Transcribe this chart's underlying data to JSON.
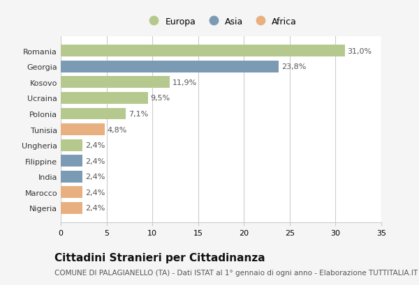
{
  "categories": [
    "Romania",
    "Georgia",
    "Kosovo",
    "Ucraina",
    "Polonia",
    "Tunisia",
    "Ungheria",
    "Filippine",
    "India",
    "Marocco",
    "Nigeria"
  ],
  "values": [
    31.0,
    23.8,
    11.9,
    9.5,
    7.1,
    4.8,
    2.4,
    2.4,
    2.4,
    2.4,
    2.4
  ],
  "labels": [
    "31,0%",
    "23,8%",
    "11,9%",
    "9,5%",
    "7,1%",
    "4,8%",
    "2,4%",
    "2,4%",
    "2,4%",
    "2,4%",
    "2,4%"
  ],
  "continents": [
    "Europa",
    "Asia",
    "Europa",
    "Europa",
    "Europa",
    "Africa",
    "Europa",
    "Asia",
    "Asia",
    "Africa",
    "Africa"
  ],
  "colors": {
    "Europa": "#b5c98e",
    "Asia": "#7b9bb5",
    "Africa": "#e8b080"
  },
  "xlim": [
    0,
    35
  ],
  "xticks": [
    0,
    5,
    10,
    15,
    20,
    25,
    30,
    35
  ],
  "title": "Cittadini Stranieri per Cittadinanza",
  "subtitle": "COMUNE DI PALAGIANELLO (TA) - Dati ISTAT al 1° gennaio di ogni anno - Elaborazione TUTTITALIA.IT",
  "background_color": "#f5f5f5",
  "bar_background": "#ffffff",
  "grid_color": "#cccccc",
  "title_fontsize": 11,
  "subtitle_fontsize": 7.5,
  "label_fontsize": 8,
  "tick_fontsize": 8,
  "legend_fontsize": 9,
  "bar_height": 0.75
}
